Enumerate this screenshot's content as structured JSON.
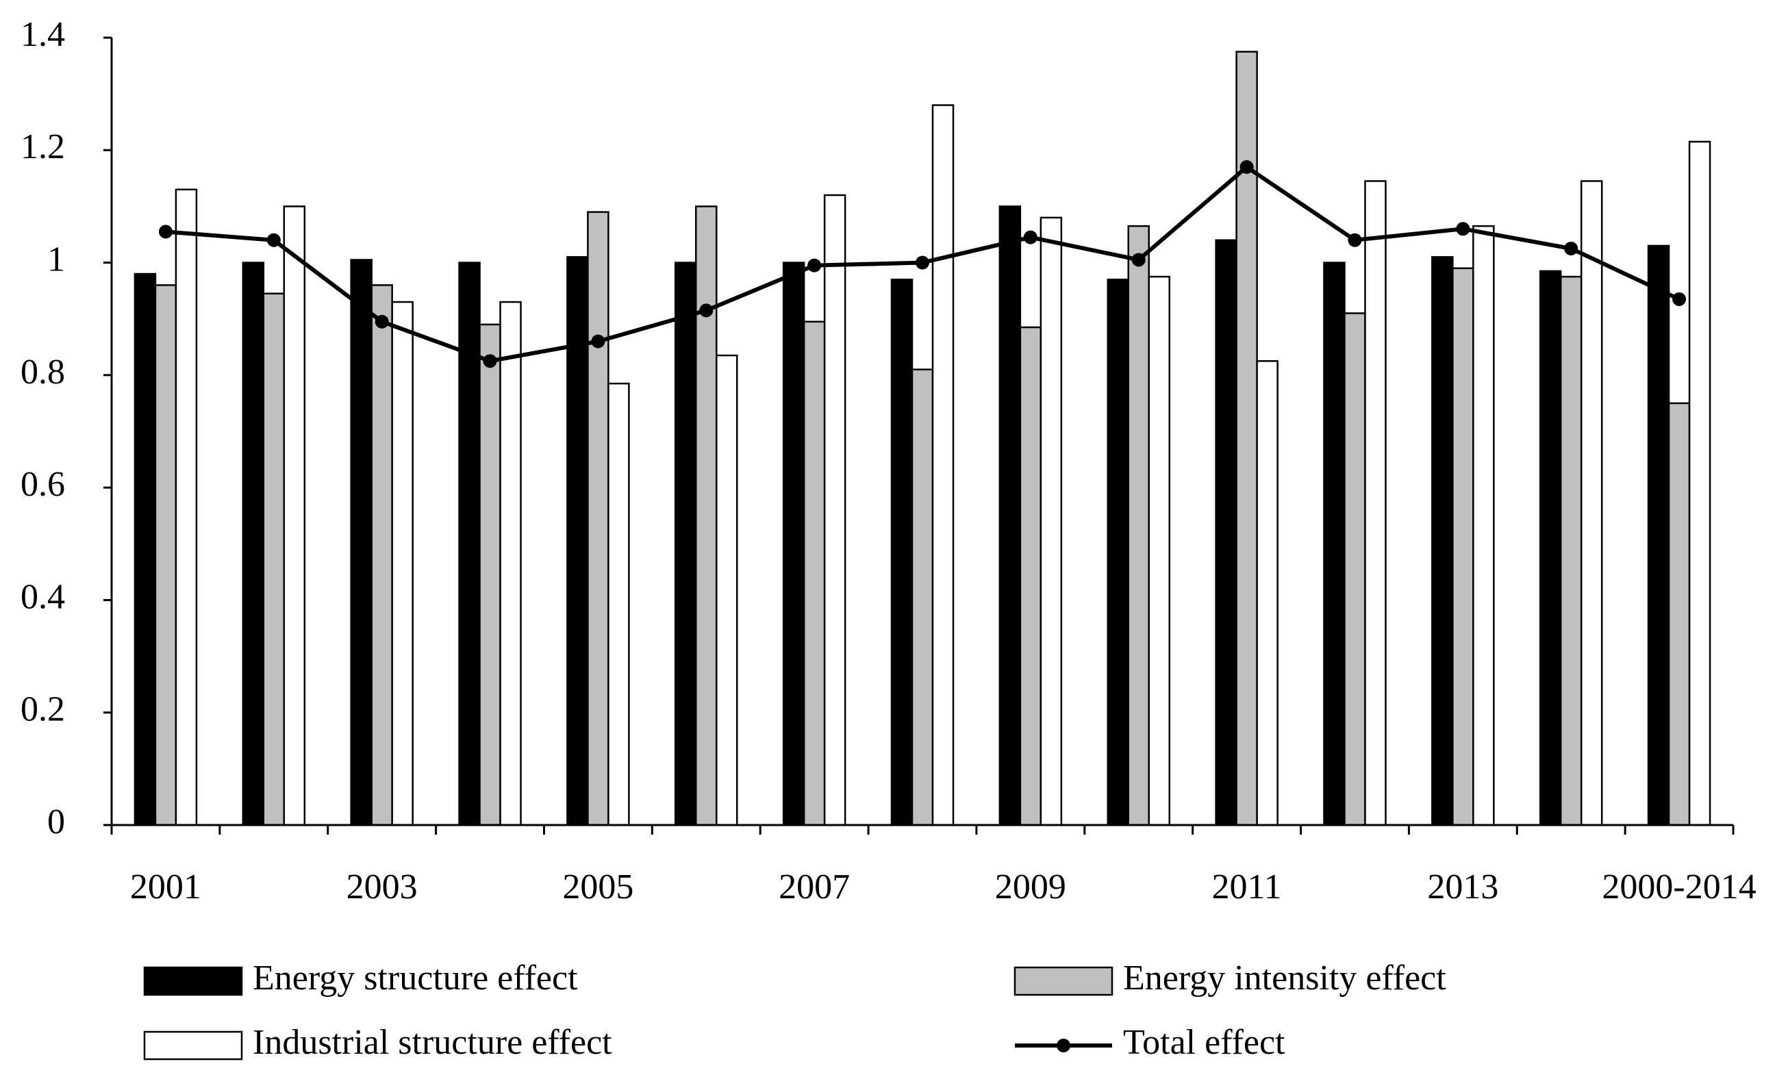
{
  "chart_data": {
    "type": "bar",
    "categories": [
      "2001",
      null,
      "2003",
      null,
      "2005",
      null,
      "2007",
      null,
      "2009",
      null,
      "2011",
      null,
      "2013",
      null,
      "2000-2014"
    ],
    "series": [
      {
        "name": "Energy structure effect",
        "type": "bar",
        "color": "#000000",
        "values": [
          0.98,
          1.0,
          1.005,
          1.0,
          1.01,
          1.0,
          1.0,
          0.97,
          1.1,
          0.97,
          1.04,
          1.0,
          1.01,
          0.985,
          1.03
        ]
      },
      {
        "name": "Energy intensity effect",
        "type": "bar",
        "color": "#c0c0c0",
        "values": [
          0.96,
          0.945,
          0.96,
          0.89,
          1.09,
          1.1,
          0.895,
          0.81,
          0.885,
          1.065,
          1.375,
          0.91,
          0.99,
          0.975,
          0.75
        ]
      },
      {
        "name": "Industrial structure effect",
        "type": "bar",
        "color": "#ffffff",
        "values": [
          1.13,
          1.1,
          0.93,
          0.93,
          0.785,
          0.835,
          1.12,
          1.28,
          1.08,
          0.975,
          0.825,
          1.145,
          1.065,
          1.145,
          1.215
        ]
      },
      {
        "name": "Total effect",
        "type": "line",
        "color": "#000000",
        "values": [
          1.055,
          1.04,
          0.895,
          0.825,
          0.86,
          0.915,
          0.995,
          1.0,
          1.045,
          1.005,
          1.17,
          1.04,
          1.06,
          1.025,
          0.935
        ]
      }
    ],
    "ylim": [
      0,
      1.4
    ],
    "yticks": [
      0,
      0.2,
      0.4,
      0.6,
      0.8,
      1,
      1.2,
      1.4
    ],
    "grid": false
  }
}
